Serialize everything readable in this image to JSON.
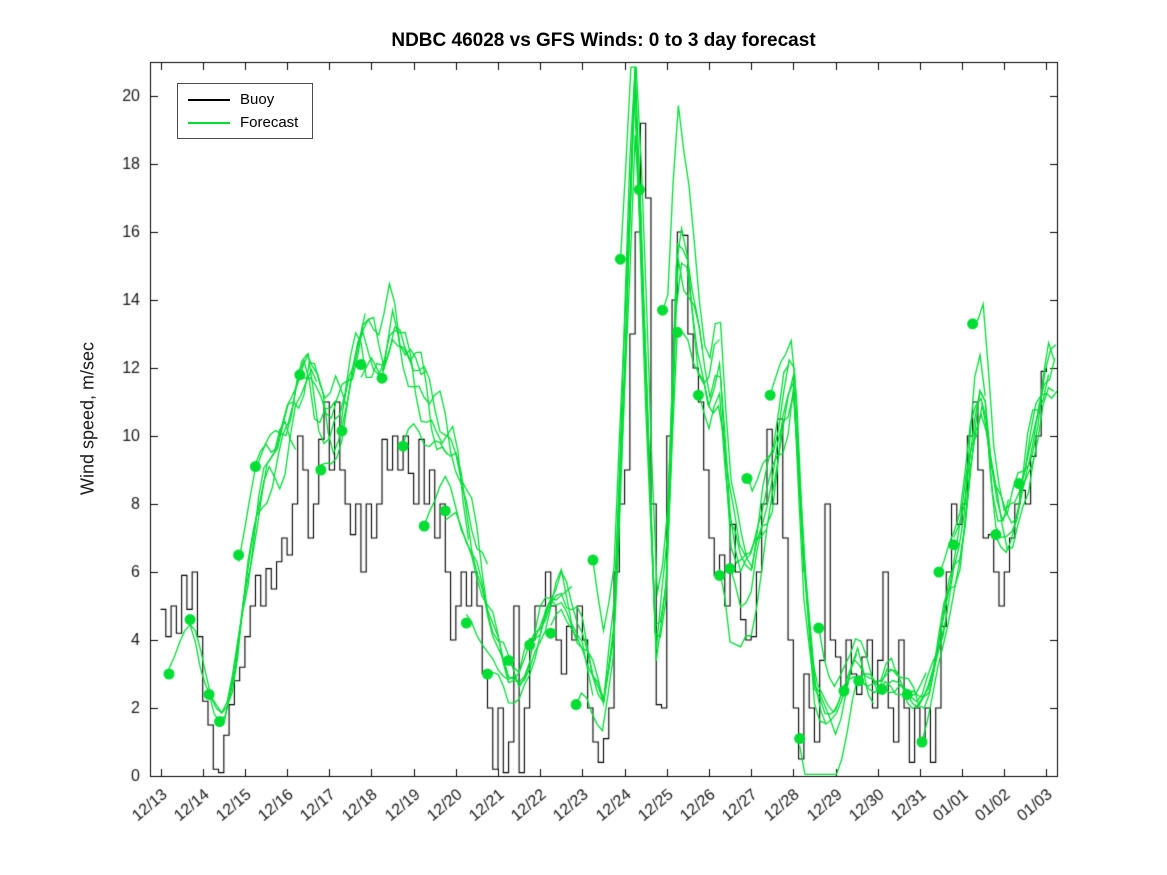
{
  "chart_data": {
    "type": "line",
    "title": "NDBC 46028 vs GFS Winds: 0 to 3 day forecast",
    "xlabel": "",
    "ylabel": "Wind speed, m/sec",
    "ylim": [
      0,
      21
    ],
    "xlim_days": [
      -0.25,
      21.25
    ],
    "grid": false,
    "yticks": [
      0,
      2,
      4,
      6,
      8,
      10,
      12,
      14,
      16,
      18,
      20
    ],
    "xtick_labels": [
      "12/13",
      "12/14",
      "12/15",
      "12/16",
      "12/17",
      "12/18",
      "12/19",
      "12/20",
      "12/21",
      "12/22",
      "12/23",
      "12/24",
      "12/25",
      "12/26",
      "12/27",
      "12/28",
      "12/29",
      "12/30",
      "12/31",
      "01/01",
      "01/02",
      "01/03"
    ],
    "legend": {
      "position": "top-left",
      "entries": [
        {
          "label": "Buoy",
          "color": "#000000"
        },
        {
          "label": "Forecast",
          "color": "#00dd33"
        }
      ]
    },
    "colors": {
      "buoy": "#000000",
      "forecast": "#00dd33",
      "axis": "#000000",
      "tick_text": "#1a1a1a",
      "background": "#ffffff"
    },
    "buoy": {
      "t0": 0,
      "dt_days": 0.125,
      "values": [
        4.9,
        4.1,
        5.0,
        4.2,
        5.9,
        4.9,
        6.0,
        4.1,
        2.2,
        1.5,
        0.2,
        0.1,
        1.2,
        2.1,
        2.8,
        3.2,
        4.1,
        5.0,
        5.9,
        5.0,
        6.1,
        5.5,
        6.3,
        7.0,
        6.5,
        8.0,
        10.0,
        9.0,
        7.0,
        8.0,
        9.9,
        11.0,
        9.0,
        11.0,
        9.0,
        8.0,
        7.1,
        8.0,
        6.0,
        8.0,
        7.0,
        8.0,
        9.9,
        9.0,
        10.0,
        9.0,
        10.0,
        8.9,
        8.0,
        9.9,
        8.0,
        9.0,
        7.0,
        8.0,
        6.0,
        4.0,
        5.0,
        6.0,
        5.0,
        6.0,
        5.0,
        3.0,
        2.0,
        0.2,
        2.0,
        0.1,
        1.0,
        5.0,
        0.1,
        2.0,
        4.0,
        5.0,
        5.0,
        6.0,
        5.0,
        4.0,
        3.0,
        4.4,
        4.0,
        5.0,
        4.0,
        2.0,
        1.0,
        0.4,
        1.1,
        2.0,
        6.0,
        8.0,
        9.0,
        13.0,
        16.0,
        19.2,
        17.0,
        8.0,
        2.1,
        2.0,
        10.0,
        14.0,
        16.0,
        15.9,
        13.0,
        12.0,
        11.0,
        9.0,
        7.0,
        5.9,
        6.5,
        5.0,
        7.4,
        6.0,
        4.6,
        4.0,
        4.1,
        6.0,
        8.0,
        10.2,
        8.0,
        10.5,
        7.0,
        4.0,
        2.0,
        0.5,
        3.0,
        2.0,
        1.0,
        3.4,
        8.0,
        4.0,
        3.5,
        2.5,
        4.0,
        3.0,
        2.4,
        3.5,
        4.0,
        2.0,
        3.4,
        6.0,
        2.0,
        1.0,
        4.0,
        2.0,
        0.4,
        2.0,
        1.0,
        2.0,
        0.4,
        2.0,
        4.4,
        6.0,
        8.0,
        7.4,
        8.0,
        10.0,
        11.0,
        9.0,
        7.0,
        7.1,
        6.0,
        5.0,
        6.0,
        7.0,
        8.0,
        8.4,
        8.0,
        9.4,
        10.0,
        11.9,
        12.0
      ]
    },
    "forecast_base": {
      "t0": 0,
      "dt_days": 0.25,
      "values": [
        3.0,
        3.4,
        4.3,
        4.6,
        3.2,
        2.0,
        1.7,
        3.0,
        5.5,
        7.5,
        8.8,
        9.3,
        10.2,
        11.2,
        12.0,
        11.0,
        10.2,
        10.8,
        12.0,
        13.2,
        13.0,
        12.2,
        13.6,
        12.8,
        12.0,
        11.4,
        10.8,
        10.2,
        9.4,
        8.0,
        6.6,
        5.2,
        4.2,
        3.2,
        3.0,
        3.6,
        4.3,
        5.2,
        5.6,
        4.8,
        4.2,
        3.0,
        2.2,
        4.5,
        12.0,
        20.4,
        12.0,
        3.5,
        6.0,
        15.0,
        14.5,
        12.5,
        11.0,
        12.2,
        8.0,
        6.5,
        6.2,
        7.6,
        8.8,
        10.6,
        11.8,
        6.0,
        2.6,
        1.8,
        1.6,
        2.5,
        3.5,
        3.0,
        2.6,
        3.0,
        2.8,
        2.4,
        2.2,
        2.8,
        4.2,
        5.8,
        7.0,
        10.0,
        11.4,
        8.2,
        7.2,
        7.6,
        8.8,
        10.2,
        11.8
      ]
    },
    "forecast_duration_days": 3,
    "forecast_markers": [
      [
        0.2,
        3.0
      ],
      [
        0.7,
        4.6
      ],
      [
        1.15,
        2.4
      ],
      [
        1.4,
        1.6
      ],
      [
        1.85,
        6.5
      ],
      [
        2.25,
        9.1
      ],
      [
        3.3,
        11.8
      ],
      [
        3.8,
        9.0
      ],
      [
        4.3,
        10.15
      ],
      [
        4.75,
        12.1
      ],
      [
        5.25,
        11.7
      ],
      [
        5.75,
        9.7
      ],
      [
        6.25,
        7.35
      ],
      [
        6.75,
        7.8
      ],
      [
        7.25,
        4.5
      ],
      [
        7.75,
        3.0
      ],
      [
        8.25,
        3.4
      ],
      [
        8.75,
        3.85
      ],
      [
        9.25,
        4.2
      ],
      [
        9.85,
        2.1
      ],
      [
        10.25,
        6.35
      ],
      [
        10.9,
        15.2
      ],
      [
        11.35,
        17.25
      ],
      [
        11.9,
        13.7
      ],
      [
        12.25,
        13.05
      ],
      [
        12.75,
        11.2
      ],
      [
        13.25,
        5.9
      ],
      [
        13.5,
        6.1
      ],
      [
        13.9,
        8.75
      ],
      [
        14.45,
        11.2
      ],
      [
        15.15,
        1.1
      ],
      [
        15.6,
        4.35
      ],
      [
        16.2,
        2.5
      ],
      [
        16.55,
        2.8
      ],
      [
        17.1,
        2.55
      ],
      [
        17.7,
        2.4
      ],
      [
        18.05,
        1.0
      ],
      [
        18.45,
        6.0
      ],
      [
        18.8,
        6.8
      ],
      [
        19.25,
        13.3
      ],
      [
        19.8,
        7.1
      ],
      [
        20.35,
        8.6
      ]
    ]
  }
}
